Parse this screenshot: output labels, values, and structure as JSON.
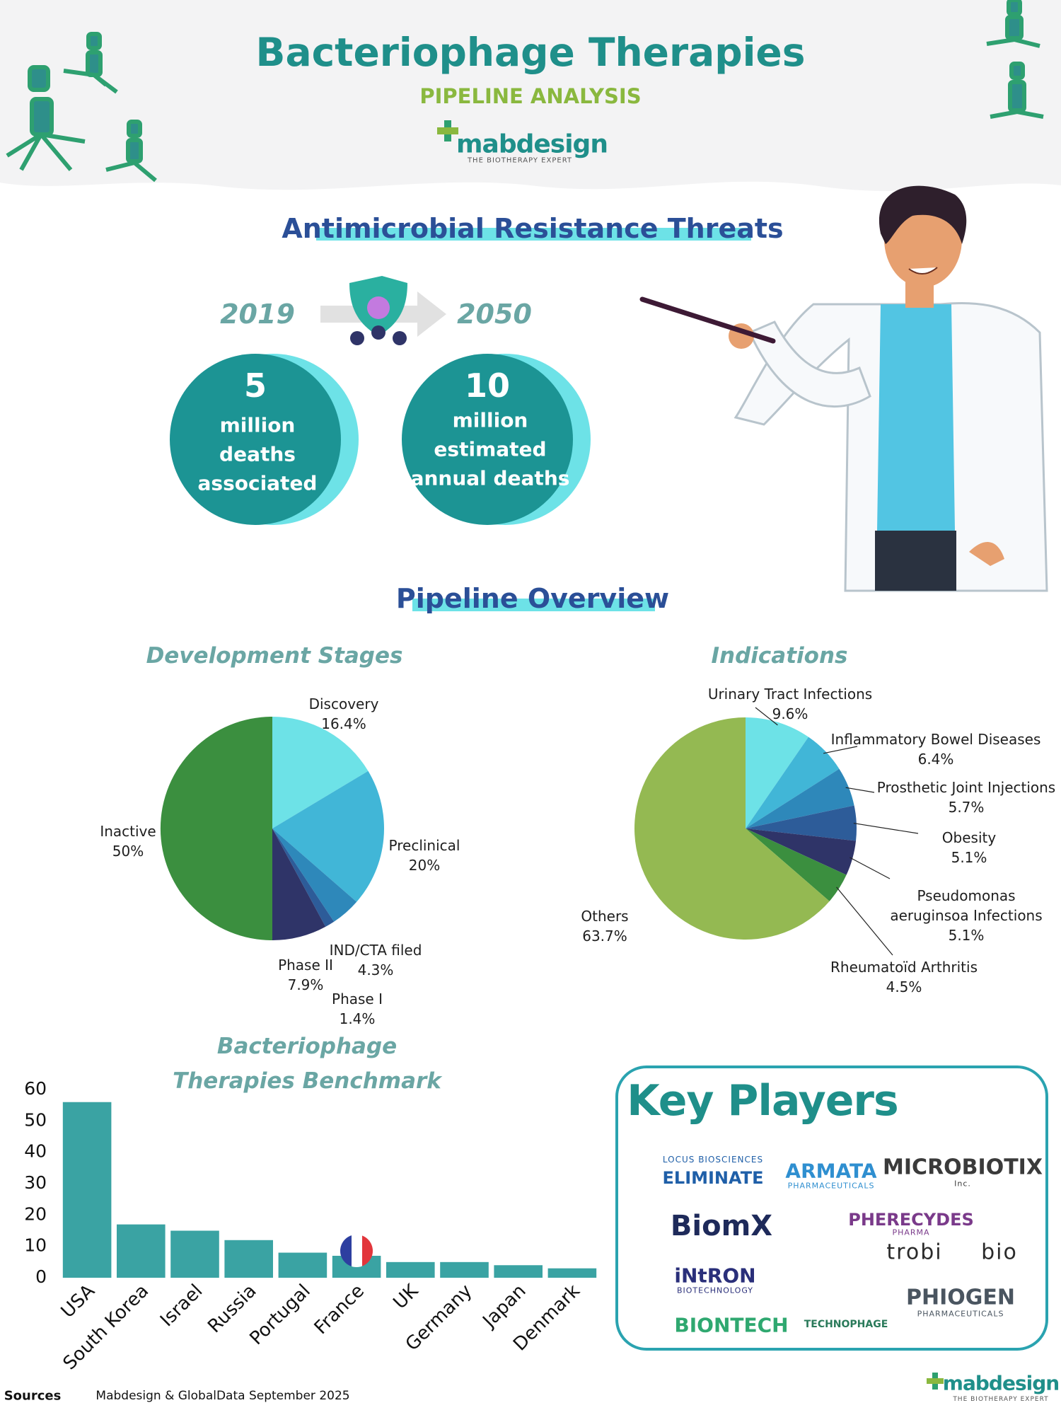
{
  "header": {
    "title": "Bacteriophage Therapies",
    "subtitle": "PIPELINE ANALYSIS",
    "logo": "mabdesign",
    "tagline": "THE BIOTHERAPY EXPERT"
  },
  "amr": {
    "heading": "Antimicrobial Resistance Threats",
    "years": [
      "2019",
      "2050"
    ],
    "stats": [
      {
        "number": 5,
        "lines": [
          "million",
          "deaths",
          "associated"
        ]
      },
      {
        "number": 10,
        "lines": [
          "million",
          "estimated",
          "annual deaths"
        ]
      }
    ]
  },
  "pipeline_heading": "Pipeline Overview",
  "chart_data": [
    {
      "type": "pie",
      "title": "Development Stages",
      "categories": [
        "Discovery",
        "Preclinical",
        "IND/CTA filed",
        "Phase I",
        "Phase II",
        "Inactive"
      ],
      "values": [
        16.4,
        20,
        4.3,
        1.4,
        7.9,
        50
      ],
      "value_labels": [
        "16.4%",
        "20%",
        "4.3%",
        "1.4%",
        "7.9%",
        "50%"
      ],
      "colors": [
        "#6de2e7",
        "#41b6d7",
        "#2e88ba",
        "#2d5c99",
        "#2f3468",
        "#3b8f3f"
      ]
    },
    {
      "type": "pie",
      "title": "Indications",
      "categories": [
        "Urinary Tract Infections",
        "Inflammatory Bowel Diseases",
        "Prosthetic Joint Injections",
        "Obesity",
        "Pseudomonas aeruginsoa Infections",
        "Rheumatoïd Arthritis",
        "Others"
      ],
      "values": [
        9.6,
        6.4,
        5.7,
        5.1,
        5.1,
        4.5,
        63.7
      ],
      "value_labels": [
        "9.6%",
        "6.4%",
        "5.7%",
        "5.1%",
        "5.1%",
        "4.5%",
        "63.7%"
      ],
      "colors": [
        "#6de2e7",
        "#41b6d7",
        "#2e88ba",
        "#2d5c99",
        "#2f3468",
        "#3b8f3f",
        "#94b952"
      ]
    },
    {
      "type": "bar",
      "title": "Bacteriophage Therapies Benchmark",
      "categories": [
        "USA",
        "South Korea",
        "Israel",
        "Russia",
        "Portugal",
        "France",
        "UK",
        "Germany",
        "Japan",
        "Denmark"
      ],
      "values": [
        56,
        17,
        15,
        12,
        8,
        7,
        5,
        5,
        4,
        3
      ],
      "color": "#3aa3a3",
      "ylim": [
        0,
        60
      ],
      "yticks": [
        0,
        10,
        20,
        30,
        40,
        50,
        60
      ]
    }
  ],
  "key_players": {
    "title": "Key Players",
    "logos": [
      {
        "text": [
          "ELIMINATE",
          "LOCUS BIOSCIENCES"
        ],
        "color": "#1f5fa8"
      },
      {
        "text": [
          "ARMATA",
          "PHARMACEUTICALS"
        ],
        "color": "#2f8fd0"
      },
      {
        "text": [
          "MICROBIOTIX",
          "Inc."
        ],
        "color": "#3a3a3a"
      },
      {
        "text": [
          "BiomX"
        ],
        "color": "#1e2a5a"
      },
      {
        "text": [
          "PHERECYDES",
          "PHARMA"
        ],
        "color": "#7a3a8a"
      },
      {
        "text": [
          "trobi",
          "bio"
        ],
        "color": "#2a2a2a"
      },
      {
        "text": [
          "iNtRON",
          "BIOTECHNOLOGY"
        ],
        "color": "#2a2f7a"
      },
      {
        "text": [
          "TECHNOPHAGE"
        ],
        "color": "#2a7a5a"
      },
      {
        "text": [
          "PHIOGEN",
          "PHARMACEUTICALS"
        ],
        "color": "#4a5560"
      },
      {
        "text": [
          "BIONTECH"
        ],
        "color": "#2fa870"
      }
    ]
  },
  "footer": {
    "label": "Sources",
    "text": "Mabdesign & GlobalData September 2025",
    "logo": "mabdesign",
    "tagline": "THE BIOTHERAPY EXPERT"
  }
}
